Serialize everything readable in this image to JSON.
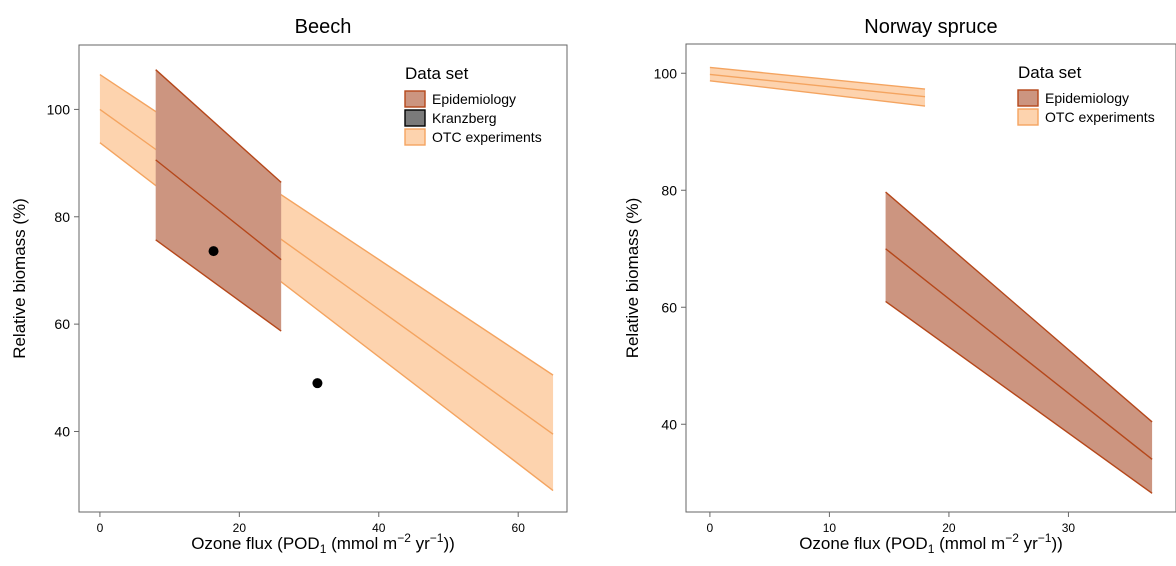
{
  "chart_data": [
    {
      "type": "line",
      "title": "Beech",
      "xlabel": "Ozone flux (POD",
      "xlabel_sub": "1",
      "xlabel_mid": " (mmol m",
      "xlabel_sup1": "−2",
      "xlabel_mid2": " yr",
      "xlabel_sup2": "−1",
      "xlabel_end": "))",
      "ylabel": "Relative biomass (%)",
      "xlim": [
        -3,
        67
      ],
      "ylim": [
        25,
        112
      ],
      "xticks": [
        0,
        20,
        40,
        60
      ],
      "yticks": [
        40,
        60,
        80,
        100
      ],
      "legend": {
        "title": "Data set",
        "position": "top-right",
        "entries": [
          {
            "name": "Epidemiology",
            "fill": "#cc9580",
            "stroke": "#b5471a"
          },
          {
            "name": "Kranzberg",
            "fill": "#7a7a7a",
            "stroke": "#000000"
          },
          {
            "name": "OTC experiments",
            "fill": "#fdd3ae",
            "stroke": "#f4a460"
          }
        ]
      },
      "series": [
        {
          "name": "OTC experiments",
          "kind": "band",
          "x": [
            0,
            65
          ],
          "y": [
            100,
            39.5
          ],
          "lower": [
            93.8,
            29
          ],
          "upper": [
            106.5,
            50.5
          ],
          "fill": "#fdd3ae",
          "stroke": "#f4a460"
        },
        {
          "name": "Epidemiology",
          "kind": "band",
          "x": [
            8,
            26
          ],
          "y": [
            90.6,
            72
          ],
          "lower": [
            75.7,
            58.7
          ],
          "upper": [
            107.4,
            86.4
          ],
          "fill": "#cc9580",
          "stroke": "#b5471a"
        },
        {
          "name": "Kranzberg",
          "kind": "points",
          "x": [
            16.3,
            31.2
          ],
          "y": [
            73.6,
            49
          ],
          "color": "#000000"
        }
      ]
    },
    {
      "type": "line",
      "title": "Norway spruce",
      "xlabel": "Ozone flux (POD",
      "xlabel_sub": "1",
      "xlabel_mid": " (mmol m",
      "xlabel_sup1": "−2",
      "xlabel_mid2": " yr",
      "xlabel_sup2": "−1",
      "xlabel_end": "))",
      "ylabel": "Relative biomass (%)",
      "xlim": [
        -2,
        39
      ],
      "ylim": [
        25,
        105
      ],
      "xticks": [
        0,
        10,
        20,
        30
      ],
      "yticks": [
        40,
        60,
        80,
        100
      ],
      "legend": {
        "title": "Data set",
        "position": "top-right",
        "entries": [
          {
            "name": "Epidemiology",
            "fill": "#cc9580",
            "stroke": "#b5471a"
          },
          {
            "name": "OTC experiments",
            "fill": "#fdd3ae",
            "stroke": "#f4a460"
          }
        ]
      },
      "series": [
        {
          "name": "OTC experiments",
          "kind": "band",
          "x": [
            0,
            18
          ],
          "y": [
            99.8,
            96
          ],
          "lower": [
            98.7,
            94.4
          ],
          "upper": [
            101,
            97.3
          ],
          "fill": "#fdd3ae",
          "stroke": "#f4a460"
        },
        {
          "name": "Epidemiology",
          "kind": "band",
          "x": [
            14.7,
            37
          ],
          "y": [
            70,
            34
          ],
          "lower": [
            61,
            28.2
          ],
          "upper": [
            79.7,
            40.4
          ],
          "fill": "#cc9580",
          "stroke": "#b5471a"
        }
      ]
    }
  ]
}
